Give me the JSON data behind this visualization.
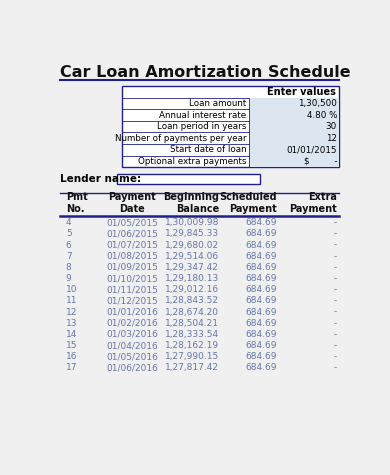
{
  "title": "Car Loan Amortization Schedule",
  "title_color": "#111111",
  "bg_color": "#f0f0f0",
  "input_labels": [
    "Loan amount",
    "Annual interest rate",
    "Loan period in years",
    "Number of payments per year",
    "Start date of loan",
    "Optional extra payments"
  ],
  "input_values": [
    "1,30,500",
    "4.80 %",
    "30",
    "12",
    "01/01/2015",
    "$         -"
  ],
  "input_header": "Enter values",
  "lender_label": "Lender name:",
  "col_headers": [
    "Pmt\nNo.",
    "Payment\nDate",
    "Beginning\nBalance",
    "Scheduled\nPayment",
    "Extra\nPayment"
  ],
  "table_data": [
    [
      "4",
      "01/05/2015",
      "1,30,009.98",
      "684.69",
      "-"
    ],
    [
      "5",
      "01/06/2015",
      "1,29,845.33",
      "684.69",
      "-"
    ],
    [
      "6",
      "01/07/2015",
      "1,29,680.02",
      "684.69",
      "-"
    ],
    [
      "7",
      "01/08/2015",
      "1,29,514.06",
      "684.69",
      "-"
    ],
    [
      "8",
      "01/09/2015",
      "1,29,347.42",
      "684.69",
      "-"
    ],
    [
      "9",
      "01/10/2015",
      "1,29,180.13",
      "684.69",
      "-"
    ],
    [
      "10",
      "01/11/2015",
      "1,29,012.16",
      "684.69",
      "-"
    ],
    [
      "11",
      "01/12/2015",
      "1,28,843.52",
      "684.69",
      "-"
    ],
    [
      "12",
      "01/01/2016",
      "1,28,674.20",
      "684.69",
      "-"
    ],
    [
      "13",
      "01/02/2016",
      "1,28,504.21",
      "684.69",
      "-"
    ],
    [
      "14",
      "01/03/2016",
      "1,28,333.54",
      "684.69",
      "-"
    ],
    [
      "15",
      "01/04/2016",
      "1,28,162.19",
      "684.69",
      "-"
    ],
    [
      "16",
      "01/05/2016",
      "1,27,990.15",
      "684.69",
      "-"
    ],
    [
      "17",
      "01/06/2016",
      "1,27,817.42",
      "684.69",
      "-"
    ]
  ],
  "input_box_bg": "#dce6f1",
  "border_color": "#1f1f8f",
  "line_color": "#1f1f8f",
  "row_text_color": "#6677aa",
  "header_text_color": "#111111"
}
